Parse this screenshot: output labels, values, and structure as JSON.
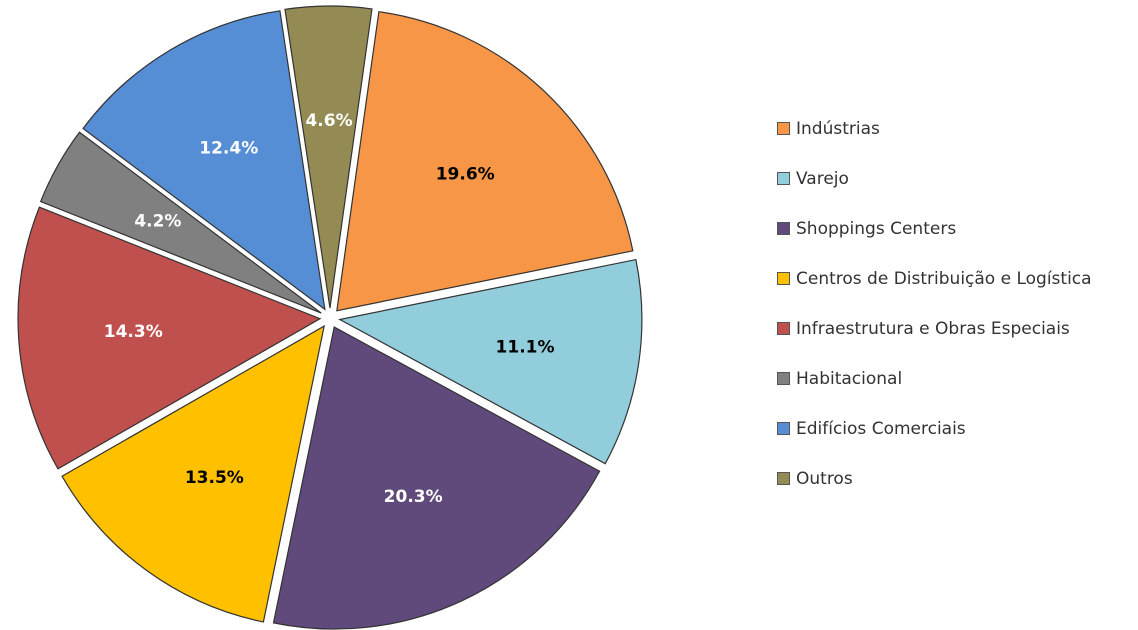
{
  "chart_data": {
    "type": "pie",
    "title": "",
    "legend_position": "right",
    "slices": [
      {
        "name": "Indústrias",
        "value": 19.6,
        "label": "19.6%",
        "color": "#F79646",
        "label_color": "#000000"
      },
      {
        "name": "Varejo",
        "value": 11.1,
        "label": "11.1%",
        "color": "#92CDDC",
        "label_color": "#000000"
      },
      {
        "name": "Shoppings Centers",
        "value": 20.3,
        "label": "20.3%",
        "color": "#604A7B",
        "label_color": "#FFFFFF"
      },
      {
        "name": "Centros de Distribuição e Logística",
        "value": 13.5,
        "label": "13.5%",
        "color": "#FFC000",
        "label_color": "#000000"
      },
      {
        "name": "Infraestrutura e Obras Especiais",
        "value": 14.3,
        "label": "14.3%",
        "color": "#C0504D",
        "label_color": "#FFFFFF"
      },
      {
        "name": "Habitacional",
        "value": 4.2,
        "label": "4.2%",
        "color": "#808080",
        "label_color": "#FFFFFF"
      },
      {
        "name": "Edifícios Comerciais",
        "value": 12.4,
        "label": "12.4%",
        "color": "#558ED5",
        "label_color": "#FFFFFF"
      },
      {
        "name": "Outros",
        "value": 4.6,
        "label": "4.6%",
        "color": "#948A54",
        "label_color": "#FFFFFF"
      }
    ]
  }
}
